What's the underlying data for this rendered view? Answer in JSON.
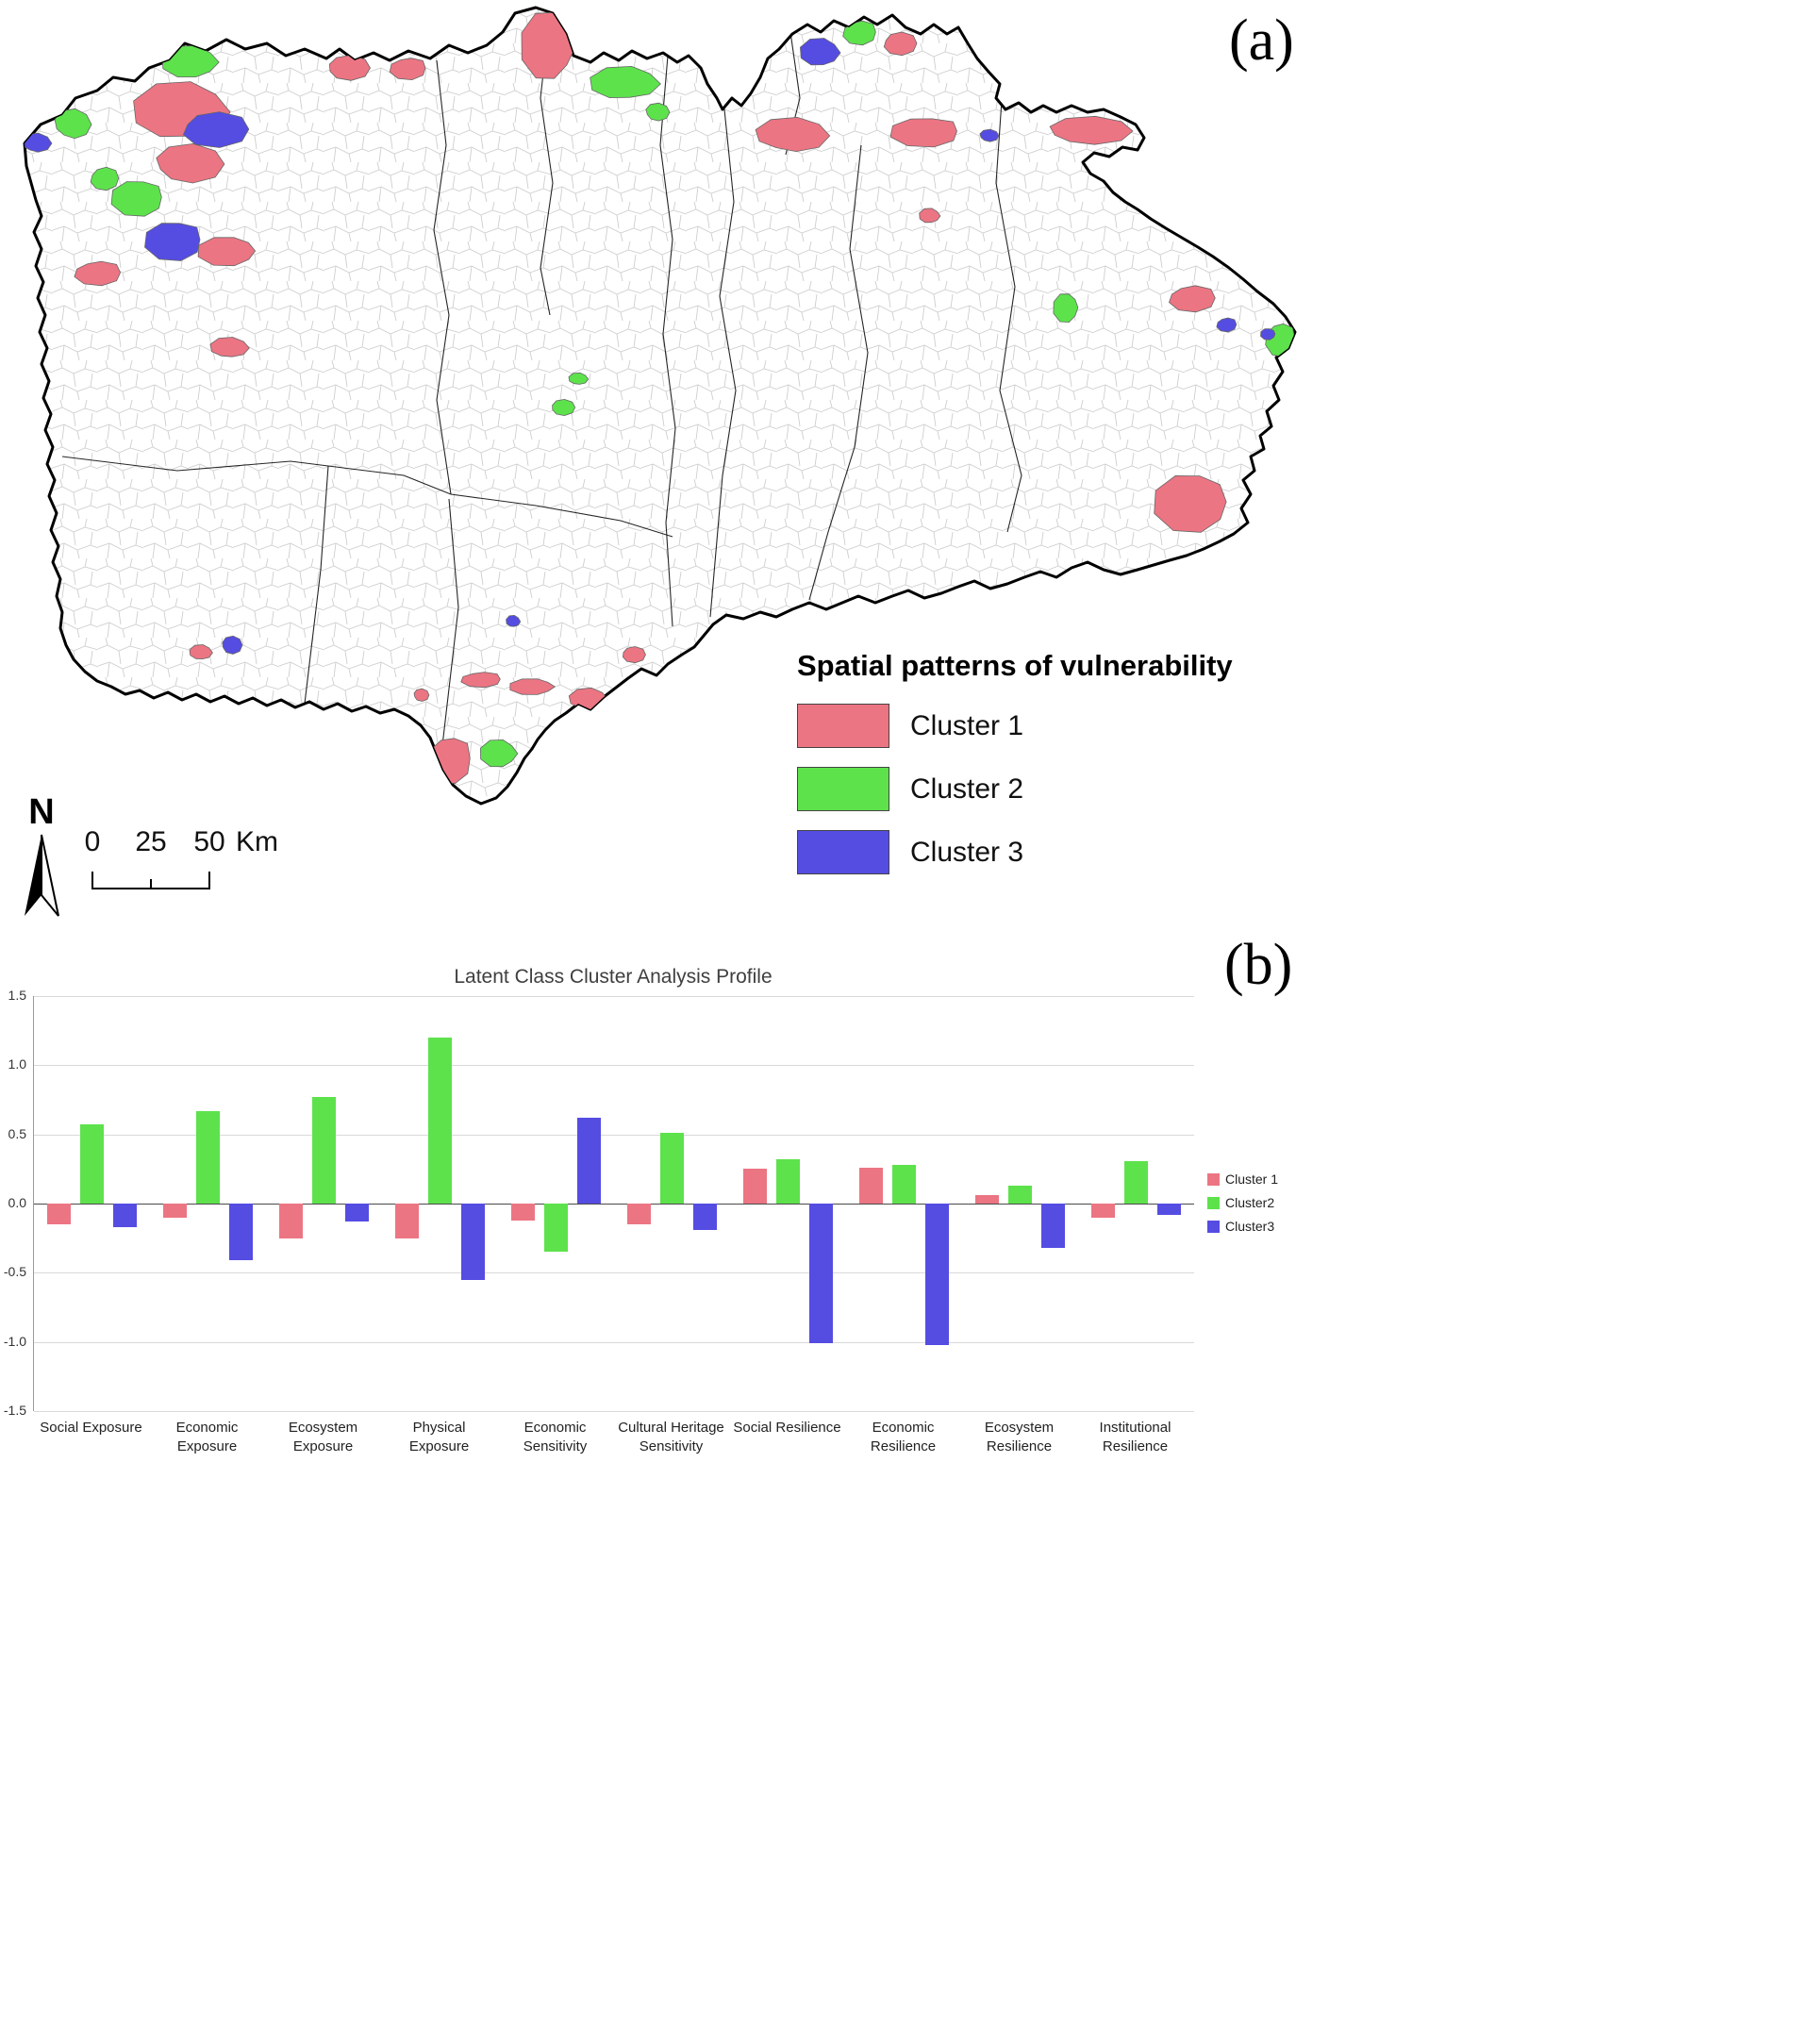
{
  "panel_labels": {
    "a": "(a)",
    "b": "(b)"
  },
  "map": {
    "legend": {
      "title": "Spatial patterns of vulnerability",
      "items": [
        {
          "label": "Cluster 1",
          "color": "#EC7583"
        },
        {
          "label": "Cluster 2",
          "color": "#5DE24C"
        },
        {
          "label": "Cluster 3",
          "color": "#554CE2"
        }
      ]
    },
    "north_label": "N",
    "scale_bar": {
      "ticks": [
        "0",
        "25",
        "50"
      ],
      "unit": "Km"
    }
  },
  "chart_data": {
    "type": "bar",
    "title": "Latent Class Cluster Analysis Profile",
    "categories": [
      "Social Exposure",
      "Economic Exposure",
      "Ecosystem Exposure",
      "Physical Exposure",
      "Economic Sensitivity",
      "Cultural Heritage Sensitivity",
      "Social Resilience",
      "Economic Resilience",
      "Ecosystem Resilience",
      "Institutional Resilience"
    ],
    "series": [
      {
        "name": "Cluster 1",
        "color": "#EC7583",
        "values": [
          -0.15,
          -0.1,
          -0.25,
          -0.25,
          -0.12,
          -0.15,
          0.25,
          0.26,
          0.06,
          -0.1
        ]
      },
      {
        "name": "Cluster2",
        "color": "#5DE24C",
        "values": [
          0.57,
          0.67,
          0.77,
          1.2,
          -0.35,
          0.51,
          0.32,
          0.28,
          0.13,
          0.31
        ]
      },
      {
        "name": "Cluster3",
        "color": "#554CE2",
        "values": [
          -0.17,
          -0.41,
          -0.13,
          -0.55,
          0.62,
          -0.19,
          -1.01,
          -1.02,
          -0.32,
          -0.08
        ]
      }
    ],
    "ylim": [
      -1.5,
      1.5
    ],
    "yticks": [
      1.5,
      1.0,
      0.5,
      0.0,
      -0.5,
      -1.0,
      -1.5
    ],
    "ytick_labels": [
      "1.5",
      "1.0",
      "0.5",
      "0.0",
      "-0.5",
      "-1.0",
      "-1.5"
    ],
    "grid": true,
    "legend_position": "right"
  }
}
